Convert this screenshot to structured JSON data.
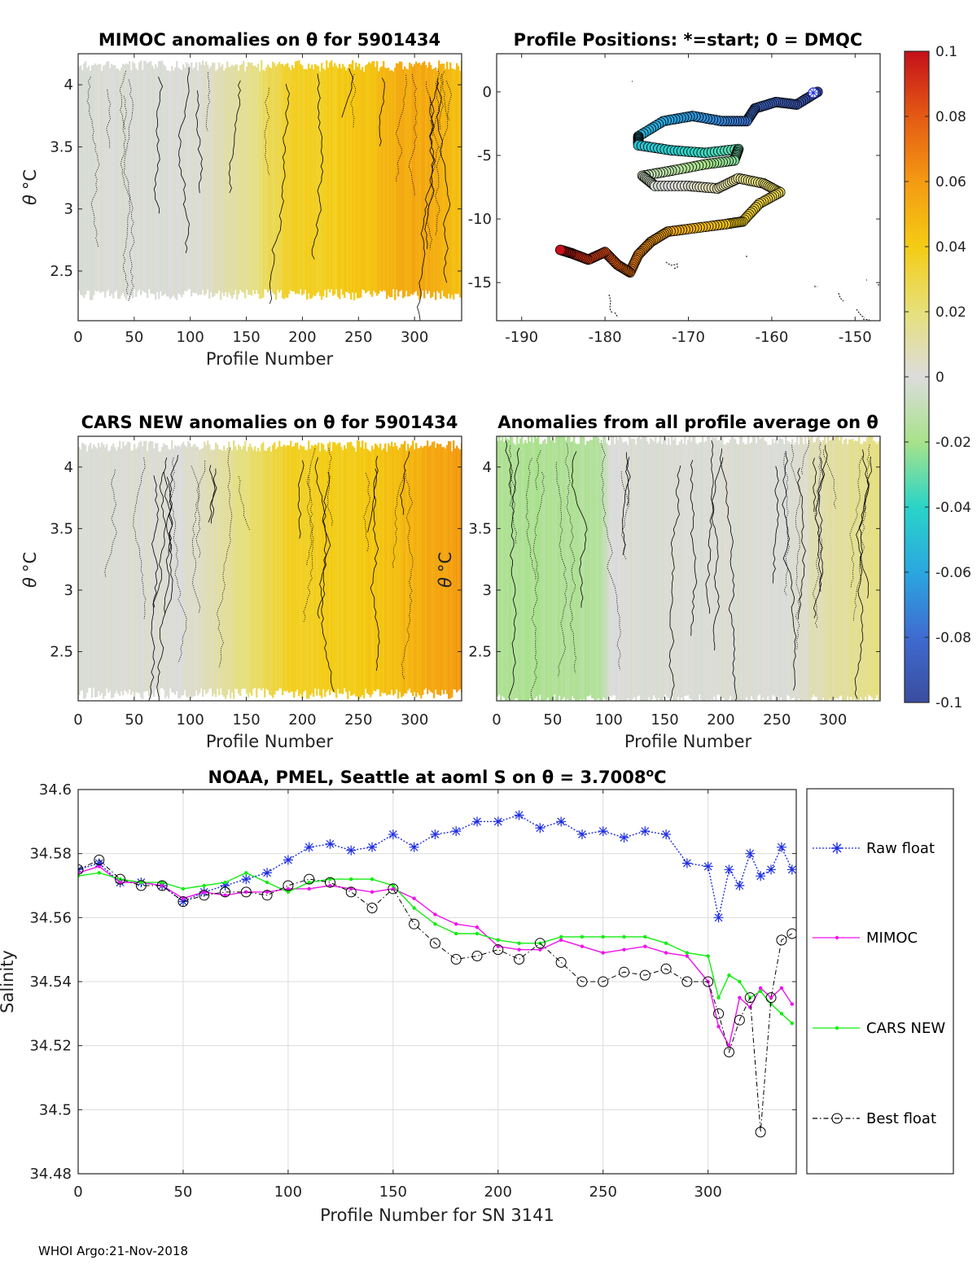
{
  "footer": "WHOI Argo:21-Nov-2018",
  "colorbar": {
    "ticks": [
      "0.1",
      "0.08",
      "0.06",
      "0.04",
      "0.02",
      "0",
      "-0.02",
      "-0.04",
      "-0.06",
      "-0.08",
      "-0.1"
    ],
    "colors": [
      "#3a4d9f",
      "#3f6bd0",
      "#2aa7e0",
      "#2ad4c8",
      "#a8e28a",
      "#dcdcdc",
      "#e6e07a",
      "#f4cc14",
      "#f49a12",
      "#e45a14",
      "#c4101a"
    ]
  },
  "chart_data": [
    {
      "type": "heatmap",
      "id": "mimoc",
      "title": "MIMOC anomalies on θ  for 5901434",
      "xlabel": "Profile Number",
      "ylabel_theta": "θ",
      "ylabel_unit": "°C",
      "xlim": [
        0,
        342
      ],
      "ylim": [
        2.1,
        4.25
      ],
      "xticks": [
        "0",
        "50",
        "100",
        "150",
        "200",
        "250",
        "300"
      ],
      "yticks": [
        "4",
        "3.5",
        "3",
        "2.5"
      ],
      "anomaly_profile": [
        {
          "x": 0,
          "v": 0.0
        },
        {
          "x": 100,
          "v": 0.0
        },
        {
          "x": 150,
          "v": 0.015
        },
        {
          "x": 185,
          "v": 0.035
        },
        {
          "x": 250,
          "v": 0.042
        },
        {
          "x": 300,
          "v": 0.055
        },
        {
          "x": 342,
          "v": 0.045
        }
      ]
    },
    {
      "type": "scatter",
      "id": "positions",
      "title": "Profile Positions: *=start; 0 = DMQC",
      "xlim": [
        -193,
        -147
      ],
      "ylim": [
        -18,
        3
      ],
      "xticks": [
        "-190",
        "-180",
        "-170",
        "-160",
        "-150"
      ],
      "yticks": [
        "0",
        "-5",
        "-10",
        "-15"
      ],
      "track": [
        {
          "x": -154.5,
          "y": 0.0
        },
        {
          "x": -157.0,
          "y": -1.0
        },
        {
          "x": -159.5,
          "y": -0.8
        },
        {
          "x": -162.0,
          "y": -1.3
        },
        {
          "x": -163.0,
          "y": -2.3
        },
        {
          "x": -166.0,
          "y": -2.3
        },
        {
          "x": -169.5,
          "y": -1.9
        },
        {
          "x": -173.0,
          "y": -2.3
        },
        {
          "x": -176.0,
          "y": -3.5
        },
        {
          "x": -176.0,
          "y": -4.2
        },
        {
          "x": -172.0,
          "y": -4.6
        },
        {
          "x": -168.0,
          "y": -4.8
        },
        {
          "x": -164.0,
          "y": -4.5
        },
        {
          "x": -164.5,
          "y": -5.4
        },
        {
          "x": -168.0,
          "y": -5.7
        },
        {
          "x": -172.0,
          "y": -6.2
        },
        {
          "x": -175.5,
          "y": -6.6
        },
        {
          "x": -174.0,
          "y": -7.4
        },
        {
          "x": -170.0,
          "y": -7.4
        },
        {
          "x": -166.5,
          "y": -7.6
        },
        {
          "x": -164.0,
          "y": -6.8
        },
        {
          "x": -161.0,
          "y": -7.2
        },
        {
          "x": -159.0,
          "y": -7.9
        },
        {
          "x": -161.5,
          "y": -8.8
        },
        {
          "x": -163.5,
          "y": -10.2
        },
        {
          "x": -165.5,
          "y": -10.4
        },
        {
          "x": -169.0,
          "y": -10.7
        },
        {
          "x": -172.5,
          "y": -11.0
        },
        {
          "x": -174.5,
          "y": -11.8
        },
        {
          "x": -176.0,
          "y": -12.8
        },
        {
          "x": -177.0,
          "y": -14.2
        },
        {
          "x": -178.5,
          "y": -13.6
        },
        {
          "x": -180.0,
          "y": -12.6
        },
        {
          "x": -182.0,
          "y": -13.2
        },
        {
          "x": -184.0,
          "y": -12.7
        },
        {
          "x": -185.5,
          "y": -12.4
        }
      ]
    },
    {
      "type": "heatmap",
      "id": "cars",
      "title": "CARS NEW anomalies on θ for 5901434",
      "xlabel": "Profile Number",
      "ylabel_theta": "θ",
      "ylabel_unit": "°C",
      "xlim": [
        0,
        342
      ],
      "ylim": [
        2.1,
        4.25
      ],
      "xticks": [
        "0",
        "50",
        "100",
        "150",
        "200",
        "250",
        "300"
      ],
      "yticks": [
        "4",
        "3.5",
        "3",
        "2.5"
      ],
      "anomaly_profile": [
        {
          "x": 0,
          "v": 0.0
        },
        {
          "x": 100,
          "v": 0.002
        },
        {
          "x": 150,
          "v": 0.02
        },
        {
          "x": 185,
          "v": 0.036
        },
        {
          "x": 250,
          "v": 0.04
        },
        {
          "x": 300,
          "v": 0.05
        },
        {
          "x": 342,
          "v": 0.06
        }
      ]
    },
    {
      "type": "heatmap",
      "id": "allavg",
      "title": "Anomalies from all profile average on θ",
      "xlabel": "Profile Number",
      "ylabel_theta": "θ",
      "ylabel_unit": "°C",
      "xlim": [
        0,
        342
      ],
      "ylim": [
        2.1,
        4.25
      ],
      "xticks": [
        "0",
        "50",
        "100",
        "150",
        "200",
        "250",
        "300"
      ],
      "yticks": [
        "4",
        "3.5",
        "3",
        "2.5"
      ],
      "anomaly_profile": [
        {
          "x": 0,
          "v": -0.018
        },
        {
          "x": 90,
          "v": -0.016
        },
        {
          "x": 100,
          "v": 0.0
        },
        {
          "x": 260,
          "v": 0.0
        },
        {
          "x": 300,
          "v": 0.012
        },
        {
          "x": 342,
          "v": 0.018
        }
      ]
    },
    {
      "type": "line",
      "id": "salinity",
      "title": "NOAA, PMEL, Seattle at aoml S on θ = 3.7008",
      "title_sup": "o",
      "title_tail": "C",
      "xlabel": "Profile Number for SN 3141",
      "ylabel": "Salinity",
      "xlim": [
        0,
        342
      ],
      "ylim": [
        34.48,
        34.6
      ],
      "xticks": [
        "0",
        "50",
        "100",
        "150",
        "200",
        "250",
        "300"
      ],
      "yticks": [
        "34.6",
        "34.58",
        "34.56",
        "34.54",
        "34.52",
        "34.5",
        "34.48"
      ],
      "series": [
        {
          "name": "Raw float",
          "color": "#1f2ee0",
          "marker": "star",
          "x": [
            0,
            10,
            20,
            30,
            40,
            50,
            60,
            70,
            80,
            90,
            100,
            110,
            120,
            130,
            140,
            150,
            160,
            170,
            180,
            190,
            200,
            210,
            220,
            230,
            240,
            250,
            260,
            270,
            280,
            290,
            300,
            305,
            310,
            315,
            320,
            325,
            330,
            335,
            340
          ],
          "y": [
            34.575,
            34.577,
            34.571,
            34.571,
            34.57,
            34.565,
            34.568,
            34.57,
            34.572,
            34.574,
            34.578,
            34.582,
            34.583,
            34.581,
            34.582,
            34.586,
            34.582,
            34.586,
            34.587,
            34.59,
            34.59,
            34.592,
            34.588,
            34.59,
            34.586,
            34.587,
            34.585,
            34.587,
            34.586,
            34.577,
            34.576,
            34.56,
            34.575,
            34.57,
            34.58,
            34.573,
            34.575,
            34.582,
            34.575
          ]
        },
        {
          "name": "MIMOC",
          "color": "#ee12ee",
          "marker": "dot",
          "x": [
            0,
            10,
            20,
            30,
            40,
            50,
            60,
            70,
            80,
            90,
            100,
            110,
            120,
            130,
            140,
            150,
            160,
            170,
            180,
            190,
            200,
            210,
            220,
            230,
            240,
            250,
            260,
            270,
            280,
            290,
            300,
            305,
            310,
            315,
            320,
            325,
            330,
            335,
            340
          ],
          "y": [
            34.574,
            34.576,
            34.571,
            34.571,
            34.57,
            34.566,
            34.568,
            34.567,
            34.568,
            34.568,
            34.569,
            34.569,
            34.57,
            34.569,
            34.568,
            34.569,
            34.566,
            34.561,
            34.558,
            34.557,
            34.551,
            34.55,
            34.55,
            34.553,
            34.551,
            34.549,
            34.55,
            34.551,
            34.549,
            34.548,
            34.54,
            34.526,
            34.52,
            34.535,
            34.532,
            34.538,
            34.535,
            34.538,
            34.533
          ]
        },
        {
          "name": "CARS NEW",
          "color": "#10ee10",
          "marker": "dot",
          "x": [
            0,
            10,
            20,
            30,
            40,
            50,
            60,
            70,
            80,
            90,
            100,
            110,
            120,
            130,
            140,
            150,
            160,
            170,
            180,
            190,
            200,
            210,
            220,
            230,
            240,
            250,
            260,
            270,
            280,
            290,
            300,
            305,
            310,
            315,
            320,
            325,
            330,
            335,
            340
          ],
          "y": [
            34.573,
            34.574,
            34.572,
            34.571,
            34.571,
            34.569,
            34.57,
            34.571,
            34.574,
            34.571,
            34.568,
            34.571,
            34.572,
            34.572,
            34.572,
            34.57,
            34.563,
            34.558,
            34.555,
            34.555,
            34.553,
            34.552,
            34.552,
            34.554,
            34.554,
            34.554,
            34.554,
            34.554,
            34.552,
            34.549,
            34.548,
            34.535,
            34.542,
            34.54,
            34.535,
            34.537,
            34.533,
            34.53,
            34.527
          ]
        },
        {
          "name": "Best float",
          "color": "#000000",
          "marker": "circle",
          "x": [
            0,
            10,
            20,
            30,
            40,
            50,
            60,
            70,
            80,
            90,
            100,
            110,
            120,
            130,
            140,
            150,
            160,
            170,
            180,
            190,
            200,
            210,
            220,
            230,
            240,
            250,
            260,
            270,
            280,
            290,
            300,
            305,
            310,
            315,
            320,
            325,
            330,
            335,
            340
          ],
          "y": [
            34.575,
            34.578,
            34.572,
            34.57,
            34.57,
            34.565,
            34.567,
            34.568,
            34.568,
            34.567,
            34.57,
            34.572,
            34.571,
            34.568,
            34.563,
            34.569,
            34.558,
            34.552,
            34.547,
            34.548,
            34.55,
            34.547,
            34.552,
            34.546,
            34.54,
            34.54,
            34.543,
            34.542,
            34.544,
            34.54,
            34.54,
            34.53,
            34.518,
            34.528,
            34.535,
            34.493,
            34.535,
            34.553,
            34.555
          ]
        }
      ]
    }
  ]
}
